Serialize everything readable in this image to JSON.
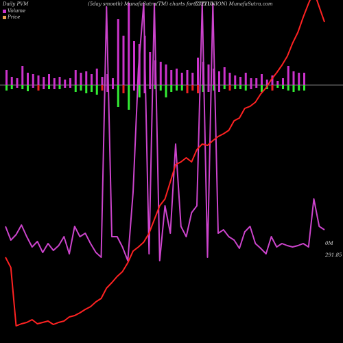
{
  "header": {
    "left": "Daily PVM",
    "middle": "(5day smooth) MunafaSutra(TM) charts for 532210",
    "right": "(CITYUNION) MunafaSutra.com"
  },
  "legend": {
    "volume_label": "Volume",
    "price_label": "Price"
  },
  "colors": {
    "background": "#000000",
    "volume_up": "#cc33cc",
    "volume_green": "#33ee33",
    "volume_red": "#ee2222",
    "volume_line": "#cc44cc",
    "price_line": "#ff2222",
    "zero_line": "#aaaaaa"
  },
  "chart_data": {
    "type": "line",
    "end_labels": {
      "volume": "0M",
      "price": "291.85"
    },
    "volume_line": [
      330,
      350,
      342,
      328,
      345,
      360,
      352,
      368,
      355,
      365,
      358,
      345,
      370,
      330,
      345,
      340,
      355,
      368,
      375,
      320,
      345,
      345,
      360,
      380,
      280,
      100,
      380,
      370,
      280,
      380,
      300,
      340,
      360,
      330,
      345,
      310,
      300,
      310,
      375,
      355,
      340,
      335,
      345,
      350,
      362,
      338,
      330,
      355,
      362,
      370,
      345,
      360,
      355,
      358,
      360,
      358,
      355,
      360,
      290,
      330,
      335
    ],
    "volume_line_spikes": [
      {
        "x": 19,
        "y": 10
      },
      {
        "x": 26,
        "y": 5
      },
      {
        "x": 28,
        "y": 5
      },
      {
        "x": 32,
        "y": 210
      },
      {
        "x": 37,
        "y": 5
      },
      {
        "x": 39,
        "y": 5
      }
    ],
    "price": [
      375,
      390,
      475,
      472,
      470,
      466,
      472,
      470,
      468,
      473,
      470,
      468,
      462,
      460,
      456,
      451,
      447,
      440,
      435,
      420,
      412,
      403,
      396,
      383,
      366,
      360,
      353,
      340,
      320,
      300,
      290,
      265,
      240,
      236,
      230,
      236,
      218,
      210,
      212,
      205,
      199,
      195,
      190,
      176,
      172,
      158,
      155,
      149,
      137,
      128,
      116,
      106,
      95,
      82,
      63,
      47,
      25,
      5,
      -13,
      10,
      32
    ],
    "volume_bars": [
      {
        "up": 22,
        "down": 8,
        "color": "green"
      },
      {
        "up": 12,
        "down": 6,
        "color": "green"
      },
      {
        "up": 10,
        "down": 4,
        "color": "magenta"
      },
      {
        "up": 28,
        "down": 6,
        "color": "green"
      },
      {
        "up": 18,
        "down": 9,
        "color": "green"
      },
      {
        "up": 16,
        "down": 4,
        "color": "magenta"
      },
      {
        "up": 14,
        "down": 8,
        "color": "red"
      },
      {
        "up": 12,
        "down": 6,
        "color": "magenta"
      },
      {
        "up": 16,
        "down": 6,
        "color": "green"
      },
      {
        "up": 10,
        "down": 6,
        "color": "magenta"
      },
      {
        "up": 12,
        "down": 6,
        "color": "green"
      },
      {
        "up": 8,
        "down": 4,
        "color": "magenta"
      },
      {
        "up": 10,
        "down": 4,
        "color": "magenta"
      },
      {
        "up": 22,
        "down": 10,
        "color": "green"
      },
      {
        "up": 18,
        "down": 8,
        "color": "green"
      },
      {
        "up": 20,
        "down": 12,
        "color": "green"
      },
      {
        "up": 16,
        "down": 10,
        "color": "green"
      },
      {
        "up": 24,
        "down": 14,
        "color": "green"
      },
      {
        "up": 12,
        "down": 8,
        "color": "red"
      },
      {
        "up": 16,
        "down": 10,
        "color": "magenta"
      },
      {
        "up": 10,
        "down": 6,
        "color": "magenta"
      },
      {
        "up": 96,
        "down": 32,
        "color": "green"
      },
      {
        "up": 72,
        "down": 12,
        "color": "red"
      },
      {
        "up": 120,
        "down": 36,
        "color": "green"
      },
      {
        "up": 64,
        "down": 8,
        "color": "magenta"
      },
      {
        "up": 60,
        "down": 18,
        "color": "green"
      },
      {
        "up": 72,
        "down": 12,
        "color": "magenta"
      },
      {
        "up": 48,
        "down": 6,
        "color": "magenta"
      },
      {
        "up": 36,
        "down": 6,
        "color": "green"
      },
      {
        "up": 34,
        "down": 8,
        "color": "green"
      },
      {
        "up": 30,
        "down": 18,
        "color": "green"
      },
      {
        "up": 22,
        "down": 10,
        "color": "green"
      },
      {
        "up": 24,
        "down": 8,
        "color": "green"
      },
      {
        "up": 18,
        "down": 8,
        "color": "green"
      },
      {
        "up": 22,
        "down": 12,
        "color": "red"
      },
      {
        "up": 18,
        "down": 8,
        "color": "red"
      },
      {
        "up": 40,
        "down": 12,
        "color": "red"
      },
      {
        "up": 34,
        "down": 10,
        "color": "green"
      },
      {
        "up": 30,
        "down": 10,
        "color": "magenta"
      },
      {
        "up": 24,
        "down": 8,
        "color": "green"
      },
      {
        "up": 20,
        "down": 10,
        "color": "magenta"
      },
      {
        "up": 26,
        "down": 6,
        "color": "green"
      },
      {
        "up": 18,
        "down": 8,
        "color": "red"
      },
      {
        "up": 14,
        "down": 6,
        "color": "green"
      },
      {
        "up": 12,
        "down": 6,
        "color": "green"
      },
      {
        "up": 18,
        "down": 8,
        "color": "green"
      },
      {
        "up": 10,
        "down": 6,
        "color": "magenta"
      },
      {
        "up": 10,
        "down": 4,
        "color": "magenta"
      },
      {
        "up": 16,
        "down": 10,
        "color": "green"
      },
      {
        "up": 8,
        "down": 6,
        "color": "green"
      },
      {
        "up": 14,
        "down": 8,
        "color": "red"
      },
      {
        "up": 6,
        "down": 4,
        "color": "green"
      },
      {
        "up": 10,
        "down": 6,
        "color": "green"
      },
      {
        "up": 28,
        "down": 8,
        "color": "green"
      },
      {
        "up": 20,
        "down": 10,
        "color": "green"
      },
      {
        "up": 18,
        "down": 8,
        "color": "green"
      },
      {
        "up": 18,
        "down": 8,
        "color": "green"
      }
    ]
  }
}
